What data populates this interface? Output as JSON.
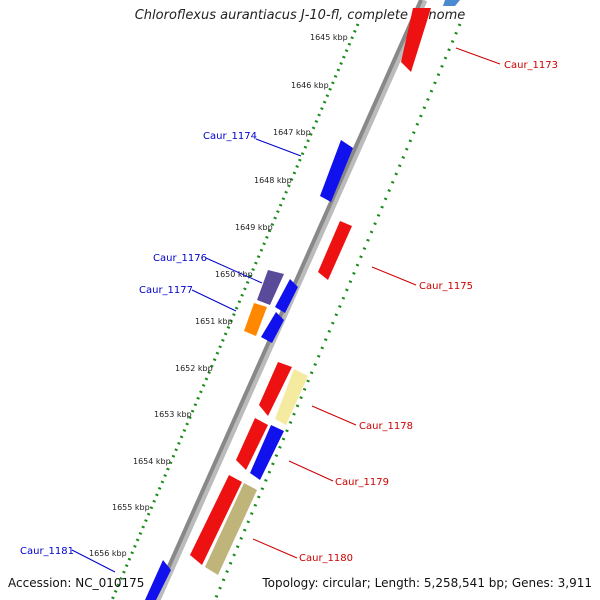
{
  "title": "Chloroflexus aurantiacus J-10-fl, complete genome",
  "footer": {
    "accession": "Accession: NC_010175",
    "topology": "Topology: circular; Length: 5,258,541 bp; Genes: 3,911"
  },
  "ticks": [
    "1645 kbp",
    "1646 kbp",
    "1647 kbp",
    "1648 kbp",
    "1649 kbp",
    "1650 kbp",
    "1651 kbp",
    "1652 kbp",
    "1653 kbp",
    "1654 kbp",
    "1655 kbp",
    "1656 kbp"
  ],
  "labels": {
    "Caur_1173": "Caur_1173",
    "Caur_1174": "Caur_1174",
    "Caur_1175": "Caur_1175",
    "Caur_1176": "Caur_1176",
    "Caur_1177": "Caur_1177",
    "Caur_1178": "Caur_1178",
    "Caur_1179": "Caur_1179",
    "Caur_1180": "Caur_1180",
    "Caur_1181": "Caur_1181"
  },
  "colors": {
    "backbone": "#888888",
    "tick_dots": "#1a8a1a",
    "minus_label": "#0000cc",
    "plus_label": "#cc0000",
    "gene_red": "#ee1111",
    "gene_blue": "#1111ee",
    "gene_purple": "#5a4a9a",
    "gene_orange": "#ff8800",
    "gene_yellow": "#f4eaa0",
    "gene_olive": "#bfb57a",
    "gene_lightblue": "#4a8ad0"
  }
}
